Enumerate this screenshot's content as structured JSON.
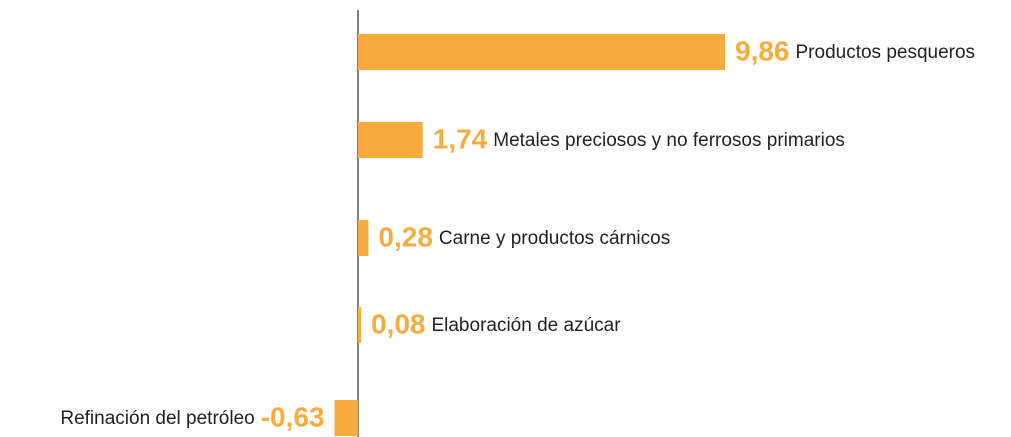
{
  "chart_data": {
    "type": "bar",
    "orientation": "horizontal",
    "categories": [
      "Productos pesqueros",
      "Metales preciosos y no ferrosos primarios",
      "Carne y productos cárnicos",
      "Elaboración de azúcar",
      "Refinación del petróleo"
    ],
    "values": [
      9.86,
      1.74,
      0.28,
      0.08,
      -0.63
    ],
    "value_labels": [
      "9,86",
      "1,74",
      "0,28",
      "0,08",
      "-0,63"
    ],
    "color": "#f7ac3d"
  }
}
